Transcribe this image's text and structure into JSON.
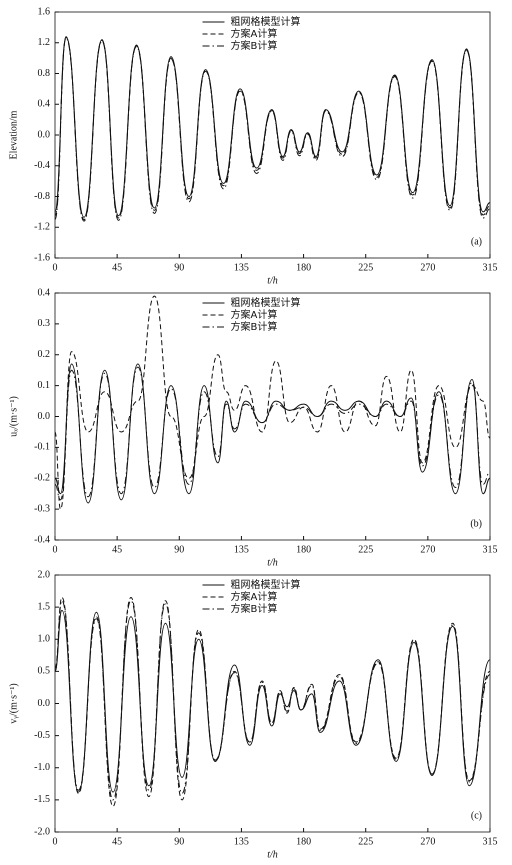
{
  "chart_data": [
    {
      "type": "line",
      "panel_label": "(a)",
      "y_label": "Elevation/m",
      "x_label": "t/h",
      "xlim": [
        0,
        315
      ],
      "xticks": [
        0,
        45,
        90,
        135,
        180,
        225,
        270,
        315
      ],
      "ylim": [
        -1.6,
        1.6
      ],
      "yticks": [
        -1.6,
        -1.2,
        -0.8,
        -0.4,
        {
          "value": 0,
          "label": "0.0"
        },
        0.4,
        0.8,
        1.2,
        1.6
      ],
      "legend": "upper center",
      "x": [
        0,
        8,
        21,
        34,
        46,
        59,
        72,
        84,
        97,
        109,
        122,
        134,
        146,
        157,
        165,
        171,
        177,
        183,
        189,
        196,
        208,
        220,
        233,
        246,
        259,
        273,
        286,
        298,
        310,
        315
      ],
      "series": [
        {
          "name": "粗网格模型计算",
          "color": "#111111",
          "dash": "solid",
          "values": [
            -1.0,
            1.28,
            -1.07,
            1.24,
            -1.05,
            1.17,
            -0.95,
            1.02,
            -0.8,
            0.85,
            -0.63,
            0.6,
            -0.43,
            0.33,
            -0.28,
            0.07,
            -0.22,
            0.03,
            -0.28,
            0.33,
            -0.22,
            0.57,
            -0.52,
            0.78,
            -0.75,
            0.98,
            -0.92,
            1.12,
            -1.0,
            -0.88
          ]
        },
        {
          "name": "方案A计算",
          "color": "#111111",
          "dash": "dashed",
          "values": [
            -1.05,
            1.27,
            -1.1,
            1.23,
            -1.08,
            1.16,
            -0.98,
            1.0,
            -0.83,
            0.84,
            -0.66,
            0.58,
            -0.46,
            0.32,
            -0.3,
            0.06,
            -0.24,
            0.02,
            -0.3,
            0.32,
            -0.25,
            0.56,
            -0.55,
            0.77,
            -0.78,
            0.97,
            -0.95,
            1.11,
            -1.04,
            -0.92
          ]
        },
        {
          "name": "方案B计算",
          "color": "#111111",
          "dash": "dashdot",
          "values": [
            -1.1,
            1.26,
            -1.12,
            1.22,
            -1.11,
            1.15,
            -1.02,
            0.99,
            -0.87,
            0.83,
            -0.7,
            0.57,
            -0.5,
            0.31,
            -0.33,
            0.05,
            -0.27,
            0.01,
            -0.33,
            0.31,
            -0.28,
            0.55,
            -0.58,
            0.76,
            -0.82,
            0.96,
            -0.98,
            1.1,
            -1.08,
            -0.96
          ]
        }
      ]
    },
    {
      "type": "line",
      "panel_label": "(b)",
      "y_label": "uₓ/(m·s⁻¹)",
      "x_label": "t/h",
      "xlim": [
        0,
        315
      ],
      "xticks": [
        0,
        45,
        90,
        135,
        180,
        225,
        270,
        315
      ],
      "ylim": [
        -0.4,
        0.4
      ],
      "yticks": [
        -0.4,
        -0.3,
        -0.2,
        -0.1,
        {
          "value": 0,
          "label": "0.0"
        },
        0.1,
        0.2,
        0.3,
        0.4
      ],
      "legend": "upper center",
      "x": [
        0,
        4,
        12,
        24,
        36,
        48,
        60,
        72,
        84,
        97,
        108,
        118,
        124,
        130,
        138,
        150,
        160,
        170,
        180,
        190,
        200,
        210,
        220,
        232,
        240,
        250,
        258,
        266,
        278,
        290,
        302,
        310,
        315
      ],
      "series": [
        {
          "name": "粗网格模型计算",
          "color": "#111111",
          "dash": "solid",
          "values": [
            -0.2,
            -0.25,
            0.17,
            -0.28,
            0.15,
            -0.27,
            0.17,
            -0.25,
            0.1,
            -0.25,
            0.1,
            -0.15,
            0.05,
            -0.05,
            0.05,
            -0.02,
            0.05,
            0.02,
            0.04,
            0.0,
            0.05,
            0.02,
            0.05,
            0.0,
            0.05,
            0.0,
            0.06,
            -0.18,
            0.08,
            -0.25,
            0.12,
            -0.25,
            -0.2
          ]
        },
        {
          "name": "方案A计算",
          "color": "#111111",
          "dash": "dashed",
          "values": [
            -0.05,
            -0.3,
            0.21,
            -0.05,
            0.08,
            -0.05,
            0.05,
            0.39,
            0.0,
            -0.2,
            0.0,
            0.2,
            0.08,
            0.02,
            0.1,
            -0.05,
            0.18,
            -0.02,
            0.03,
            -0.05,
            0.1,
            -0.05,
            0.05,
            -0.03,
            0.13,
            -0.05,
            0.15,
            -0.15,
            0.1,
            -0.1,
            0.1,
            0.05,
            -0.07
          ]
        },
        {
          "name": "方案B计算",
          "color": "#111111",
          "dash": "dashdot",
          "values": [
            -0.22,
            -0.27,
            0.15,
            -0.26,
            0.14,
            -0.25,
            0.16,
            -0.23,
            0.09,
            -0.22,
            0.08,
            -0.13,
            0.04,
            -0.04,
            0.04,
            -0.02,
            0.04,
            0.02,
            0.03,
            0.0,
            0.04,
            0.01,
            0.04,
            0.0,
            0.04,
            0.0,
            0.05,
            -0.16,
            0.07,
            -0.23,
            0.11,
            -0.22,
            -0.18
          ]
        }
      ]
    },
    {
      "type": "line",
      "panel_label": "(c)",
      "y_label": "vᵧ/(m·s⁻¹)",
      "x_label": "t/h",
      "xlim": [
        0,
        315
      ],
      "xticks": [
        0,
        45,
        90,
        135,
        180,
        225,
        270,
        315
      ],
      "ylim": [
        -2.0,
        2.0
      ],
      "yticks": [
        {
          "value": -2,
          "label": "-2.0"
        },
        -1.5,
        {
          "value": -1,
          "label": "-1.0"
        },
        -0.5,
        {
          "value": 0,
          "label": "0.0"
        },
        0.5,
        {
          "value": 1,
          "label": "1.0"
        },
        1.5,
        {
          "value": 2,
          "label": "2.0"
        }
      ],
      "legend": "upper center",
      "x": [
        0,
        5,
        17,
        30,
        42,
        55,
        68,
        80,
        92,
        104,
        116,
        130,
        141,
        150,
        157,
        163,
        168,
        173,
        178,
        186,
        192,
        206,
        218,
        234,
        247,
        260,
        273,
        288,
        300,
        315
      ],
      "series": [
        {
          "name": "粗网格模型计算",
          "color": "#111111",
          "dash": "solid",
          "values": [
            0.5,
            1.45,
            -1.38,
            1.42,
            -1.38,
            1.35,
            -1.28,
            1.25,
            -1.15,
            1.0,
            -0.9,
            0.6,
            -0.65,
            0.28,
            -0.35,
            0.15,
            -0.05,
            0.2,
            -0.1,
            0.15,
            -0.45,
            0.35,
            -0.65,
            0.68,
            -0.9,
            0.95,
            -1.12,
            1.2,
            -1.28,
            0.68
          ]
        },
        {
          "name": "方案A计算",
          "color": "#111111",
          "dash": "dashed",
          "values": [
            0.55,
            1.65,
            -1.4,
            1.35,
            -1.6,
            1.65,
            -1.45,
            1.6,
            -1.5,
            1.15,
            -0.9,
            0.5,
            -0.6,
            0.35,
            -0.3,
            0.2,
            -0.15,
            0.25,
            -0.1,
            0.3,
            -0.4,
            0.45,
            -0.6,
            0.65,
            -0.85,
            1.0,
            -1.1,
            1.25,
            -1.2,
            0.5
          ]
        },
        {
          "name": "方案B计算",
          "color": "#111111",
          "dash": "dashdot",
          "values": [
            0.5,
            1.6,
            -1.35,
            1.32,
            -1.5,
            1.6,
            -1.35,
            1.55,
            -1.4,
            1.1,
            -0.88,
            0.48,
            -0.6,
            0.33,
            -0.3,
            0.18,
            -0.12,
            0.23,
            -0.1,
            0.28,
            -0.42,
            0.42,
            -0.62,
            0.63,
            -0.87,
            0.98,
            -1.1,
            1.22,
            -1.22,
            0.45
          ]
        }
      ]
    }
  ]
}
